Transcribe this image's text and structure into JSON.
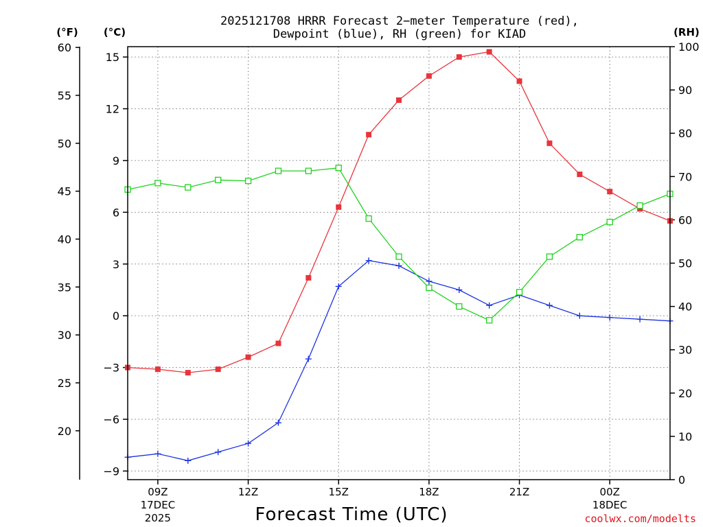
{
  "chart_data": {
    "type": "line",
    "title_line1": "2025121708 HRRR Forecast 2−meter Temperature (red),",
    "title_line2": "Dewpoint (blue), RH (green) for KIAD",
    "units": {
      "fahrenheit": "(°F)",
      "celsius": "(°C)",
      "rh": "(RH)"
    },
    "xlabel": "Forecast Time (UTC)",
    "credit": "coolwx.com/modelts",
    "x_hours": [
      8,
      9,
      10,
      11,
      12,
      13,
      14,
      15,
      16,
      17,
      18,
      19,
      20,
      21,
      22,
      23,
      24,
      25,
      26
    ],
    "xlim": [
      8,
      26
    ],
    "x_ticks": [
      {
        "hour": 9,
        "label": "09Z",
        "sub1": "17DEC",
        "sub2": "2025"
      },
      {
        "hour": 12,
        "label": "12Z",
        "sub1": "",
        "sub2": ""
      },
      {
        "hour": 15,
        "label": "15Z",
        "sub1": "",
        "sub2": ""
      },
      {
        "hour": 18,
        "label": "18Z",
        "sub1": "",
        "sub2": ""
      },
      {
        "hour": 21,
        "label": "21Z",
        "sub1": "",
        "sub2": ""
      },
      {
        "hour": 24,
        "label": "00Z",
        "sub1": "18DEC",
        "sub2": ""
      }
    ],
    "celsius_axis": {
      "range": [
        -9.5,
        15.6
      ],
      "ticks": [
        -9,
        -6,
        -3,
        0,
        3,
        6,
        9,
        12,
        15
      ],
      "tick_labels": [
        "−9",
        "−6",
        "−3",
        "0",
        "3",
        "6",
        "9",
        "12",
        "15"
      ]
    },
    "fahrenheit_axis": {
      "ticks": [
        20,
        25,
        30,
        35,
        40,
        45,
        50,
        55,
        60
      ]
    },
    "rh_axis": {
      "range": [
        0,
        100
      ],
      "ticks": [
        0,
        10,
        20,
        30,
        40,
        50,
        60,
        70,
        80,
        90,
        100
      ]
    },
    "series": [
      {
        "name": "Temperature",
        "unit": "C",
        "color": "#e8343c",
        "marker": "filled-square",
        "values": [
          -3.0,
          -3.1,
          -3.3,
          -3.1,
          -2.4,
          -1.6,
          2.2,
          6.3,
          10.5,
          12.5,
          13.9,
          15.0,
          15.3,
          13.6,
          10.0,
          8.2,
          7.2,
          6.2,
          5.5
        ]
      },
      {
        "name": "Dewpoint",
        "unit": "C",
        "color": "#1c32e0",
        "marker": "plus",
        "values": [
          -8.2,
          -8.0,
          -8.4,
          -7.9,
          -7.4,
          -6.2,
          -2.5,
          1.7,
          3.2,
          2.9,
          2.0,
          1.5,
          0.6,
          1.2,
          0.6,
          0.0,
          -0.1,
          -0.2,
          -0.3
        ]
      },
      {
        "name": "RH",
        "unit": "%",
        "color": "#1ed21e",
        "marker": "open-square",
        "values": [
          67,
          68.5,
          67.5,
          69.2,
          69.0,
          71.3,
          71.3,
          72.0,
          60.3,
          51.5,
          44.3,
          40.0,
          36.8,
          43.3,
          51.5,
          56.0,
          59.5,
          63.3,
          66.0
        ]
      }
    ]
  }
}
